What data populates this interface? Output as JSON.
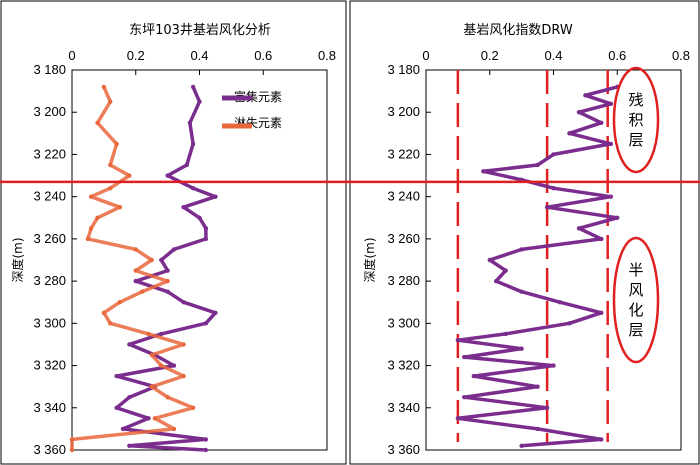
{
  "chart_data": [
    {
      "type": "line",
      "title": "东坪103井基岩风化分析",
      "xlim": [
        0,
        0.8
      ],
      "x_ticks": [
        "0",
        "0.2",
        "0.4",
        "0.6",
        "0.8"
      ],
      "ylim": [
        3180,
        3360
      ],
      "y_ticks": [
        "3 180",
        "3 200",
        "3 220",
        "3 240",
        "3 260",
        "3 280",
        "3 300",
        "3 320",
        "3 340",
        "3 360"
      ],
      "ylabel": "深度(m)",
      "grid": false,
      "legend_position": "top-right",
      "series": [
        {
          "name": "富集元素",
          "color": "#7b2d8e",
          "depth": [
            3188,
            3195,
            3205,
            3215,
            3225,
            3230,
            3236,
            3240,
            3245,
            3250,
            3255,
            3260,
            3265,
            3270,
            3275,
            3280,
            3285,
            3290,
            3295,
            3300,
            3305,
            3310,
            3315,
            3320,
            3325,
            3330,
            3335,
            3340,
            3345,
            3350,
            3355,
            3358,
            3360
          ],
          "values": [
            0.38,
            0.4,
            0.37,
            0.38,
            0.36,
            0.3,
            0.38,
            0.45,
            0.35,
            0.4,
            0.42,
            0.42,
            0.32,
            0.28,
            0.3,
            0.2,
            0.3,
            0.35,
            0.45,
            0.42,
            0.28,
            0.18,
            0.26,
            0.32,
            0.14,
            0.26,
            0.18,
            0.14,
            0.24,
            0.16,
            0.42,
            0.18,
            0.42
          ]
        },
        {
          "name": "淋失元素",
          "color": "#e8673b",
          "depth": [
            3188,
            3195,
            3205,
            3215,
            3225,
            3230,
            3236,
            3240,
            3245,
            3250,
            3255,
            3260,
            3265,
            3270,
            3275,
            3280,
            3285,
            3290,
            3295,
            3300,
            3305,
            3310,
            3315,
            3320,
            3325,
            3330,
            3335,
            3340,
            3345,
            3350,
            3355,
            3360
          ],
          "values": [
            0.1,
            0.12,
            0.08,
            0.14,
            0.12,
            0.18,
            0.12,
            0.06,
            0.15,
            0.08,
            0.06,
            0.05,
            0.2,
            0.25,
            0.2,
            0.3,
            0.22,
            0.15,
            0.1,
            0.12,
            0.24,
            0.35,
            0.25,
            0.28,
            0.35,
            0.25,
            0.3,
            0.38,
            0.26,
            0.32,
            0.0,
            0.0
          ]
        }
      ],
      "boundary_depth": 3233
    },
    {
      "type": "line",
      "title": "基岩风化指数DRW",
      "xlim": [
        0,
        0.8
      ],
      "x_ticks": [
        "0",
        "0.2",
        "0.4",
        "0.6",
        "0.8"
      ],
      "ylim": [
        3180,
        3360
      ],
      "y_ticks": [
        "3 180",
        "3 200",
        "3 220",
        "3 240",
        "3 260",
        "3 280",
        "3 300",
        "3 320",
        "3 340",
        "3 360"
      ],
      "ylabel": "深度(m)",
      "grid": false,
      "series": [
        {
          "name": "DRW",
          "color": "#7b2d8e",
          "depth": [
            3188,
            3192,
            3196,
            3200,
            3205,
            3210,
            3215,
            3220,
            3225,
            3228,
            3232,
            3236,
            3240,
            3245,
            3250,
            3255,
            3260,
            3265,
            3270,
            3275,
            3280,
            3285,
            3290,
            3295,
            3300,
            3305,
            3308,
            3312,
            3316,
            3320,
            3325,
            3330,
            3335,
            3340,
            3345,
            3350,
            3355,
            3358
          ],
          "values": [
            0.6,
            0.5,
            0.58,
            0.48,
            0.55,
            0.45,
            0.58,
            0.4,
            0.35,
            0.18,
            0.3,
            0.4,
            0.58,
            0.38,
            0.6,
            0.48,
            0.55,
            0.3,
            0.2,
            0.25,
            0.22,
            0.3,
            0.42,
            0.55,
            0.45,
            0.25,
            0.1,
            0.3,
            0.12,
            0.4,
            0.15,
            0.35,
            0.12,
            0.38,
            0.1,
            0.35,
            0.55,
            0.3
          ]
        }
      ],
      "reference_lines_x": [
        0.1,
        0.38,
        0.57
      ],
      "boundary_depth": 3233,
      "zones": [
        "残积层",
        "半风化层"
      ]
    }
  ],
  "legend": {
    "enriched": "富集元素",
    "leached": "淋失元素"
  },
  "colors": {
    "enriched": "#7b2d8e",
    "leached": "#e8673b",
    "marker_red": "#e02020"
  }
}
